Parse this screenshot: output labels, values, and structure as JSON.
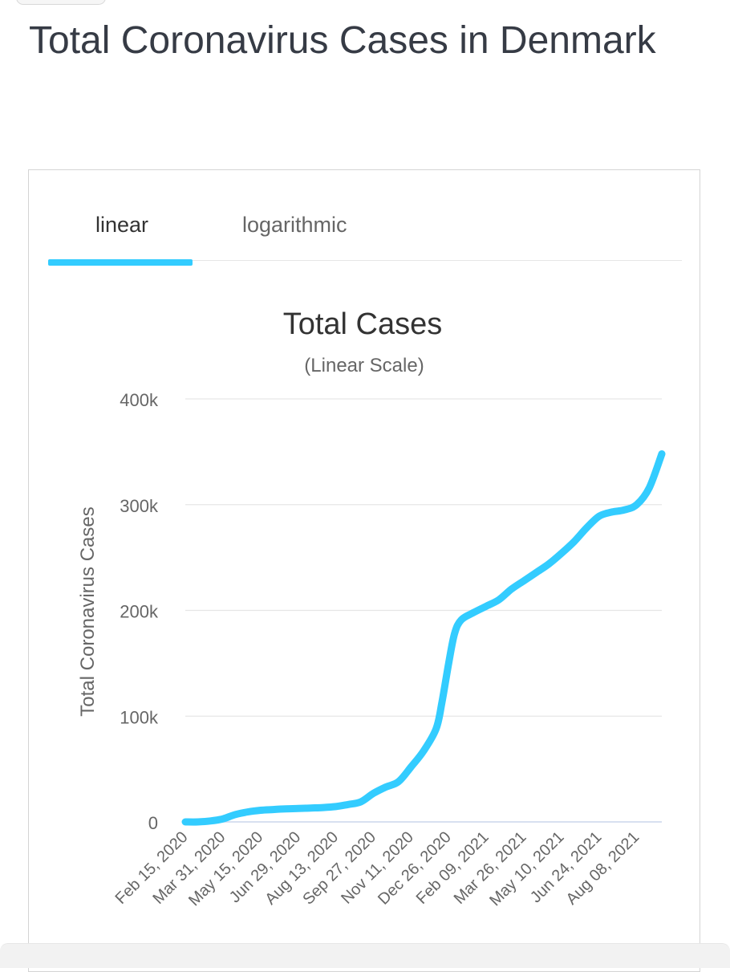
{
  "page": {
    "title": "Total Coronavirus Cases in Denmark"
  },
  "tabs": [
    {
      "label": "linear",
      "active": true
    },
    {
      "label": "logarithmic",
      "active": false
    }
  ],
  "chart_data": {
    "type": "line",
    "title": "Total Cases",
    "subtitle": "(Linear Scale)",
    "xlabel": "",
    "ylabel": "Total Coronavirus Cases",
    "ylim": [
      0,
      400000
    ],
    "yticks": [
      0,
      100000,
      200000,
      300000,
      400000
    ],
    "ytick_labels": [
      "0",
      "100k",
      "200k",
      "300k",
      "400k"
    ],
    "xtick_labels": [
      "Feb 15, 2020",
      "Mar 31, 2020",
      "May 15, 2020",
      "Jun 29, 2020",
      "Aug 13, 2020",
      "Sep 27, 2020",
      "Nov 11, 2020",
      "Dec 26, 2020",
      "Feb 09, 2021",
      "Mar 26, 2021",
      "May 10, 2021",
      "Jun 24, 2021",
      "Aug 08, 2021"
    ],
    "grid": true,
    "legend": false,
    "line_color": "#33ccff",
    "x": [
      "Feb 15, 2020",
      "Mar 01, 2020",
      "Mar 16, 2020",
      "Mar 31, 2020",
      "Apr 15, 2020",
      "Apr 30, 2020",
      "May 15, 2020",
      "May 30, 2020",
      "Jun 14, 2020",
      "Jun 29, 2020",
      "Jul 14, 2020",
      "Jul 29, 2020",
      "Aug 13, 2020",
      "Aug 28, 2020",
      "Sep 12, 2020",
      "Sep 27, 2020",
      "Oct 12, 2020",
      "Oct 27, 2020",
      "Nov 11, 2020",
      "Nov 26, 2020",
      "Dec 11, 2020",
      "Dec 18, 2020",
      "Dec 26, 2020",
      "Jan 02, 2021",
      "Jan 10, 2021",
      "Jan 25, 2021",
      "Feb 09, 2021",
      "Feb 24, 2021",
      "Mar 11, 2021",
      "Mar 26, 2021",
      "Apr 10, 2021",
      "Apr 25, 2021",
      "May 10, 2021",
      "May 25, 2021",
      "Jun 09, 2021",
      "Jun 24, 2021",
      "Jul 09, 2021",
      "Jul 24, 2021",
      "Aug 08, 2021",
      "Aug 23, 2021",
      "Sep 07, 2021"
    ],
    "series": [
      {
        "values": [
          1,
          10,
          900,
          2900,
          7000,
          9500,
          11000,
          11700,
          12300,
          12700,
          13100,
          13600,
          14500,
          16500,
          19000,
          27000,
          33000,
          38000,
          52000,
          67000,
          88000,
          113000,
          150000,
          178000,
          191000,
          198000,
          204000,
          210000,
          220000,
          228000,
          236000,
          244000,
          254000,
          265000,
          278000,
          289000,
          293000,
          295000,
          300000,
          316000,
          348000
        ]
      }
    ]
  }
}
